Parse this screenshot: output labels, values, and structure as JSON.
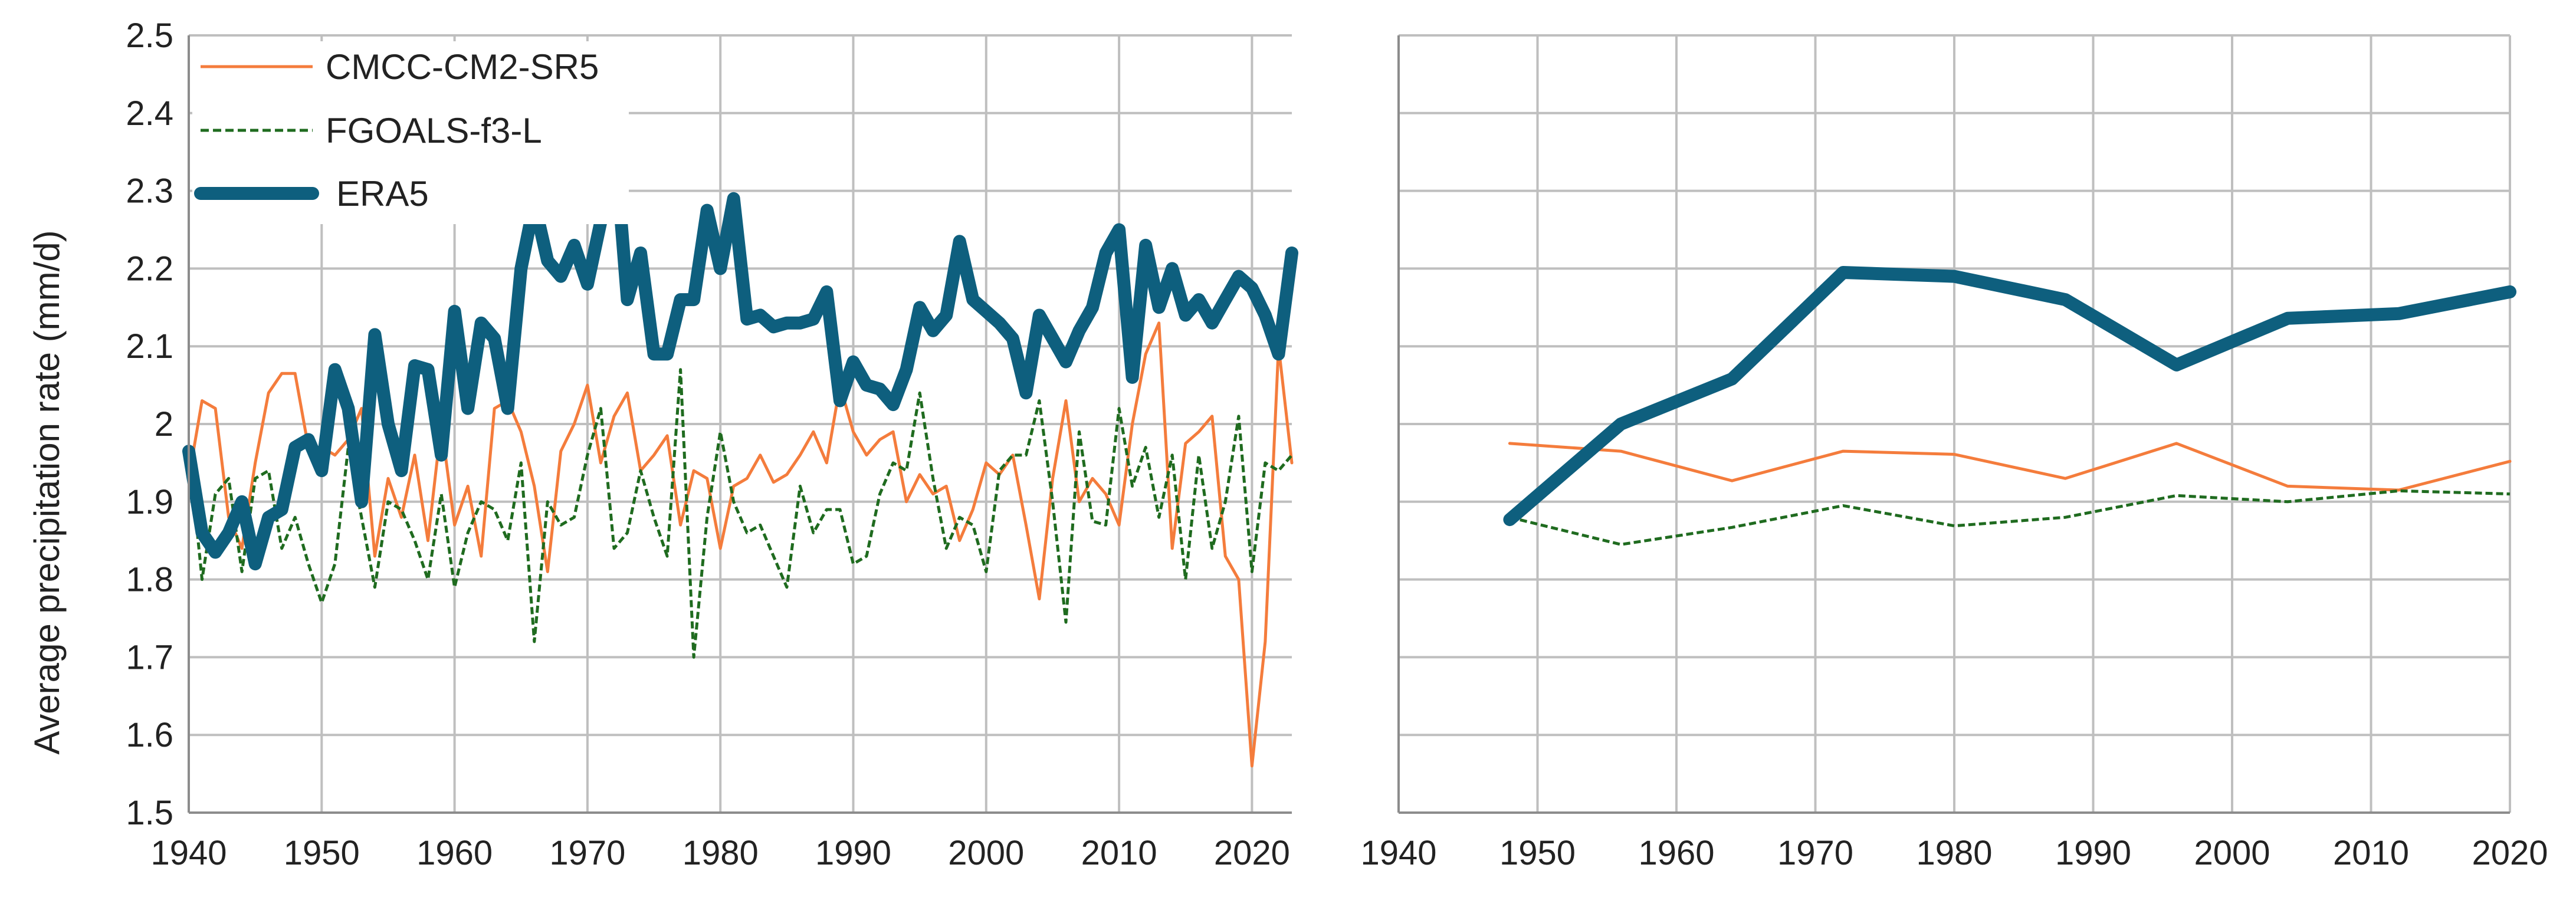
{
  "colors": {
    "grid": "#bfbfbf",
    "axis": "#8c8c8c",
    "background": "#ffffff"
  },
  "chart_data": [
    {
      "type": "line",
      "ylabel": "Average precipitation rate (mm/d)",
      "xlabel": "",
      "xlim": [
        1940,
        2023
      ],
      "ylim": [
        1.5,
        2.5
      ],
      "xticks": [
        1940,
        1950,
        1960,
        1970,
        1980,
        1990,
        2000,
        2010,
        2020
      ],
      "yticks": [
        1.5,
        1.6,
        1.7,
        1.8,
        1.9,
        2,
        2.1,
        2.2,
        2.3,
        2.4,
        2.5
      ],
      "ytick_labels": [
        "1.5",
        "1.6",
        "1.7",
        "1.8",
        "1.9",
        "2",
        "2.1",
        "2.2",
        "2.3",
        "2.4",
        "2.5"
      ],
      "grid": true,
      "legend": "top-left",
      "x": [
        1940,
        1941,
        1942,
        1943,
        1944,
        1945,
        1946,
        1947,
        1948,
        1949,
        1950,
        1951,
        1952,
        1953,
        1954,
        1955,
        1956,
        1957,
        1958,
        1959,
        1960,
        1961,
        1962,
        1963,
        1964,
        1965,
        1966,
        1967,
        1968,
        1969,
        1970,
        1971,
        1972,
        1973,
        1974,
        1975,
        1976,
        1977,
        1978,
        1979,
        1980,
        1981,
        1982,
        1983,
        1984,
        1985,
        1986,
        1987,
        1988,
        1989,
        1990,
        1991,
        1992,
        1993,
        1994,
        1995,
        1996,
        1997,
        1998,
        1999,
        2000,
        2001,
        2002,
        2003,
        2004,
        2005,
        2006,
        2007,
        2008,
        2009,
        2010,
        2011,
        2012,
        2013,
        2014,
        2015,
        2016,
        2017,
        2018,
        2019,
        2020,
        2021,
        2022,
        2023
      ],
      "series": [
        {
          "name": "CMCC-CM2-SR5",
          "color": "#f47c3c",
          "style": "solid",
          "width": 5,
          "values": [
            1.93,
            2.03,
            2.02,
            1.88,
            1.84,
            1.95,
            2.04,
            2.065,
            2.065,
            1.97,
            1.97,
            1.96,
            1.98,
            2.02,
            1.83,
            1.93,
            1.88,
            1.96,
            1.85,
            2.0,
            1.87,
            1.92,
            1.83,
            2.02,
            2.03,
            1.99,
            1.92,
            1.81,
            1.965,
            2.0,
            2.05,
            1.95,
            2.01,
            2.04,
            1.94,
            1.96,
            1.985,
            1.87,
            1.94,
            1.93,
            1.84,
            1.92,
            1.93,
            1.96,
            1.925,
            1.935,
            1.96,
            1.99,
            1.95,
            2.05,
            1.99,
            1.96,
            1.98,
            1.99,
            1.9,
            1.935,
            1.91,
            1.92,
            1.85,
            1.89,
            1.95,
            1.935,
            1.96,
            1.87,
            1.775,
            1.93,
            2.03,
            1.9,
            1.93,
            1.91,
            1.87,
            2.0,
            2.09,
            2.13,
            1.84,
            1.975,
            1.99,
            2.01,
            1.83,
            1.8,
            1.56,
            1.72,
            2.1,
            1.95
          ]
        },
        {
          "name": "FGOALS-f3-L",
          "color": "#1f6b1f",
          "style": "dashed",
          "width": 5,
          "values": [
            1.97,
            1.8,
            1.91,
            1.93,
            1.81,
            1.93,
            1.94,
            1.84,
            1.88,
            1.82,
            1.77,
            1.82,
            1.97,
            1.88,
            1.79,
            1.9,
            1.89,
            1.85,
            1.8,
            1.91,
            1.79,
            1.86,
            1.9,
            1.89,
            1.85,
            1.95,
            1.72,
            1.9,
            1.87,
            1.88,
            1.96,
            2.02,
            1.84,
            1.86,
            1.94,
            1.88,
            1.83,
            2.07,
            1.7,
            1.88,
            1.99,
            1.9,
            1.86,
            1.87,
            1.83,
            1.79,
            1.92,
            1.86,
            1.89,
            1.89,
            1.82,
            1.83,
            1.91,
            1.95,
            1.94,
            2.04,
            1.93,
            1.84,
            1.88,
            1.87,
            1.81,
            1.94,
            1.96,
            1.96,
            2.03,
            1.9,
            1.745,
            1.99,
            1.875,
            1.87,
            2.02,
            1.92,
            1.97,
            1.88,
            1.96,
            1.8,
            1.96,
            1.84,
            1.9,
            2.01,
            1.81,
            1.95,
            1.94,
            1.96
          ]
        },
        {
          "name": "ERA5",
          "color": "#0e5f7e",
          "style": "solid",
          "width": 22,
          "values": [
            1.965,
            1.86,
            1.835,
            1.86,
            1.9,
            1.82,
            1.88,
            1.89,
            1.97,
            1.98,
            1.94,
            2.07,
            2.02,
            1.9,
            2.115,
            2.0,
            1.94,
            2.075,
            2.07,
            1.96,
            2.145,
            2.02,
            2.13,
            2.11,
            2.02,
            2.2,
            2.285,
            2.21,
            2.19,
            2.23,
            2.18,
            2.26,
            2.375,
            2.16,
            2.22,
            2.09,
            2.09,
            2.16,
            2.16,
            2.275,
            2.2,
            2.29,
            2.135,
            2.14,
            2.125,
            2.13,
            2.13,
            2.135,
            2.17,
            2.03,
            2.08,
            2.05,
            2.045,
            2.025,
            2.07,
            2.15,
            2.12,
            2.14,
            2.235,
            2.16,
            2.145,
            2.13,
            2.11,
            2.04,
            2.14,
            2.11,
            2.08,
            2.12,
            2.15,
            2.22,
            2.25,
            2.06,
            2.23,
            2.15,
            2.2,
            2.14,
            2.16,
            2.13,
            2.16,
            2.19,
            2.175,
            2.14,
            2.09,
            2.22
          ]
        }
      ]
    },
    {
      "type": "line",
      "ylabel": "",
      "xlabel": "",
      "xlim": [
        1940,
        2020
      ],
      "ylim": [
        1.5,
        2.5
      ],
      "xticks": [
        1940,
        1950,
        1960,
        1970,
        1980,
        1990,
        2000,
        2010,
        2020
      ],
      "yticks": [
        1.5,
        1.6,
        1.7,
        1.8,
        1.9,
        2,
        2.1,
        2.2,
        2.3,
        2.4,
        2.5
      ],
      "grid": true,
      "x": [
        1948,
        1956,
        1964,
        1972,
        1980,
        1988,
        1996,
        2004,
        2012,
        2020
      ],
      "series": [
        {
          "name": "CMCC-CM2-SR5",
          "color": "#f47c3c",
          "style": "solid",
          "width": 5,
          "values": [
            1.975,
            1.965,
            1.927,
            1.965,
            1.961,
            1.93,
            1.975,
            1.92,
            1.915,
            1.952
          ]
        },
        {
          "name": "FGOALS-f3-L",
          "color": "#1f6b1f",
          "style": "dashed",
          "width": 5,
          "values": [
            1.88,
            1.845,
            1.867,
            1.895,
            1.869,
            1.88,
            1.908,
            1.9,
            1.914,
            1.91
          ]
        },
        {
          "name": "ERA5",
          "color": "#0e5f7e",
          "style": "solid",
          "width": 22,
          "values": [
            1.877,
            2.0,
            2.058,
            2.195,
            2.19,
            2.16,
            2.076,
            2.136,
            2.142,
            2.17
          ]
        }
      ]
    }
  ]
}
